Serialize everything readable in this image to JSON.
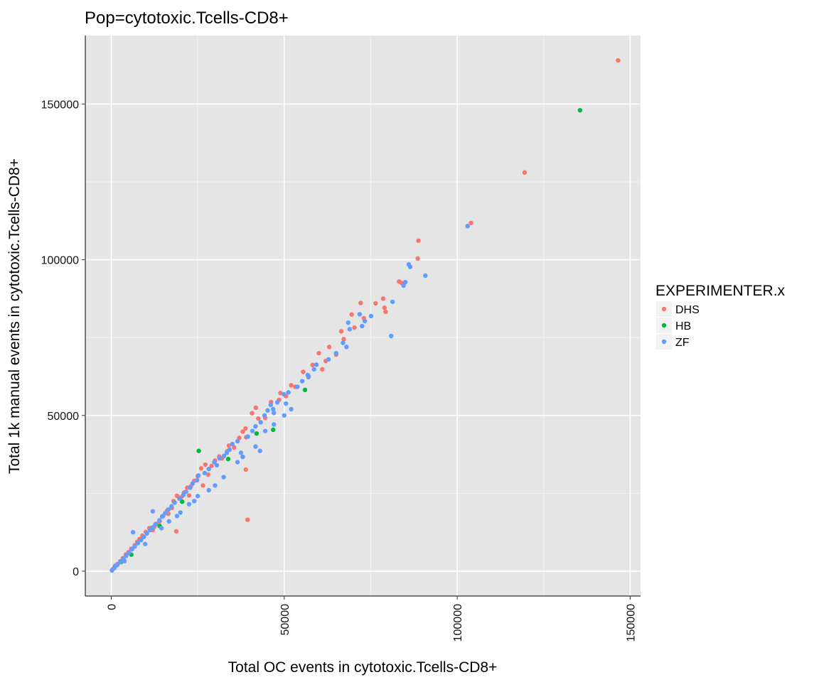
{
  "chart_data": {
    "type": "scatter",
    "title": "Pop=cytotoxic.Tcells-CD8+",
    "xlabel": "Total OC events in cytotoxic.Tcells-CD8+",
    "ylabel": "Total 1k manual events in cytotoxic.Tcells-CD8+",
    "xlim": [
      -7500,
      153000
    ],
    "ylim": [
      -8000,
      172000
    ],
    "x_ticks": [
      0,
      50000,
      100000,
      150000
    ],
    "x_tick_labels": [
      "0",
      "50000",
      "100000",
      "150000"
    ],
    "y_ticks": [
      0,
      50000,
      100000,
      150000
    ],
    "y_tick_labels": [
      "0",
      "50000",
      "100000",
      "150000"
    ],
    "grid": true,
    "legend": {
      "title": "EXPERIMENTER.x",
      "placement": "right",
      "entries": [
        {
          "label": "DHS",
          "color": "#F8766D"
        },
        {
          "label": "HB",
          "color": "#00BA38"
        },
        {
          "label": "ZF",
          "color": "#619CFF"
        }
      ]
    },
    "series": [
      {
        "name": "DHS",
        "color": "#F8766D",
        "points": [
          [
            146500,
            164000
          ],
          [
            119500,
            128000
          ],
          [
            104000,
            111800
          ],
          [
            88800,
            106100
          ],
          [
            88600,
            100400
          ],
          [
            83200,
            93000
          ],
          [
            78600,
            87500
          ],
          [
            76400,
            86000
          ],
          [
            72100,
            86100
          ],
          [
            79300,
            83300
          ],
          [
            69500,
            82400
          ],
          [
            70300,
            78200
          ],
          [
            66500,
            77000
          ],
          [
            67200,
            74500
          ],
          [
            60000,
            70000
          ],
          [
            63000,
            72000
          ],
          [
            62000,
            67500
          ],
          [
            58200,
            66200
          ],
          [
            55500,
            64000
          ],
          [
            53200,
            59200
          ],
          [
            52000,
            59700
          ],
          [
            48900,
            57200
          ],
          [
            48500,
            55000
          ],
          [
            46200,
            54300
          ],
          [
            41800,
            52500
          ],
          [
            40700,
            50700
          ],
          [
            42500,
            49000
          ],
          [
            38800,
            45800
          ],
          [
            38000,
            44800
          ],
          [
            37000,
            42800
          ],
          [
            39000,
            43000
          ],
          [
            38900,
            32600
          ],
          [
            39400,
            16500
          ],
          [
            34000,
            40300
          ],
          [
            33500,
            38500
          ],
          [
            31200,
            36800
          ],
          [
            27200,
            34200
          ],
          [
            26000,
            33000
          ],
          [
            30000,
            35500
          ],
          [
            28000,
            31000
          ],
          [
            25000,
            30500
          ],
          [
            24000,
            29000
          ],
          [
            26500,
            27500
          ],
          [
            22000,
            26800
          ],
          [
            21000,
            25200
          ],
          [
            19000,
            24200
          ],
          [
            18000,
            22500
          ],
          [
            17500,
            20300
          ],
          [
            16200,
            19500
          ],
          [
            15000,
            17700
          ],
          [
            14000,
            16000
          ],
          [
            13000,
            15200
          ],
          [
            12500,
            14300
          ],
          [
            11000,
            13800
          ],
          [
            10000,
            12600
          ],
          [
            9000,
            11400
          ],
          [
            18800,
            12800
          ],
          [
            8200,
            10300
          ],
          [
            7500,
            9400
          ],
          [
            6800,
            8300
          ],
          [
            5800,
            7200
          ],
          [
            5000,
            6100
          ],
          [
            4200,
            5300
          ],
          [
            3400,
            4200
          ],
          [
            2600,
            3200
          ],
          [
            1800,
            2300
          ],
          [
            1000,
            1400
          ],
          [
            400,
            600
          ],
          [
            20200,
            23700
          ],
          [
            23000,
            27200
          ],
          [
            29000,
            33800
          ],
          [
            32000,
            36200
          ],
          [
            35500,
            39700
          ],
          [
            44500,
            49200
          ],
          [
            50500,
            56200
          ],
          [
            57000,
            62600
          ],
          [
            61000,
            64800
          ],
          [
            65000,
            69500
          ],
          [
            73000,
            81200
          ],
          [
            79000,
            84600
          ],
          [
            84000,
            92500
          ],
          [
            12000,
            13200
          ],
          [
            16500,
            18400
          ],
          [
            22500,
            24300
          ]
        ]
      },
      {
        "name": "HB",
        "color": "#00BA38",
        "points": [
          [
            135500,
            148000
          ],
          [
            56000,
            58200
          ],
          [
            46800,
            45400
          ],
          [
            42000,
            44200
          ],
          [
            25300,
            38600
          ],
          [
            33800,
            36000
          ],
          [
            20500,
            22300
          ],
          [
            14000,
            14500
          ],
          [
            5800,
            5300
          ],
          [
            2800,
            2900
          ]
        ]
      },
      {
        "name": "ZF",
        "color": "#619CFF",
        "points": [
          [
            103000,
            110800
          ],
          [
            90800,
            94900
          ],
          [
            86000,
            98500
          ],
          [
            86400,
            97700
          ],
          [
            85000,
            92800
          ],
          [
            84500,
            91700
          ],
          [
            81300,
            86500
          ],
          [
            80900,
            75500
          ],
          [
            75100,
            81900
          ],
          [
            73300,
            80300
          ],
          [
            72500,
            78700
          ],
          [
            71800,
            82500
          ],
          [
            68500,
            79800
          ],
          [
            68900,
            77700
          ],
          [
            67000,
            73300
          ],
          [
            68000,
            72000
          ],
          [
            65000,
            70000
          ],
          [
            62800,
            68000
          ],
          [
            59300,
            66300
          ],
          [
            58600,
            64800
          ],
          [
            56800,
            63000
          ],
          [
            55200,
            61000
          ],
          [
            57000,
            62300
          ],
          [
            53800,
            59200
          ],
          [
            51200,
            57400
          ],
          [
            49900,
            56800
          ],
          [
            50500,
            53800
          ],
          [
            46100,
            53400
          ],
          [
            45200,
            51600
          ],
          [
            44300,
            50000
          ],
          [
            46800,
            52000
          ],
          [
            48000,
            54200
          ],
          [
            47000,
            50800
          ],
          [
            43200,
            47800
          ],
          [
            41700,
            46500
          ],
          [
            40800,
            45000
          ],
          [
            39500,
            43200
          ],
          [
            36500,
            41700
          ],
          [
            35000,
            40800
          ],
          [
            34200,
            39000
          ],
          [
            33400,
            38000
          ],
          [
            32600,
            37000
          ],
          [
            31300,
            36200
          ],
          [
            29800,
            35000
          ],
          [
            30500,
            34000
          ],
          [
            28200,
            32800
          ],
          [
            27000,
            31500
          ],
          [
            25200,
            30700
          ],
          [
            24800,
            29200
          ],
          [
            23500,
            28100
          ],
          [
            22800,
            26800
          ],
          [
            21600,
            25500
          ],
          [
            20800,
            24400
          ],
          [
            19700,
            23300
          ],
          [
            18300,
            22000
          ],
          [
            17400,
            20800
          ],
          [
            16500,
            19800
          ],
          [
            15600,
            18600
          ],
          [
            14700,
            17500
          ],
          [
            13900,
            16300
          ],
          [
            12800,
            15100
          ],
          [
            11900,
            14000
          ],
          [
            11200,
            13200
          ],
          [
            12000,
            19200
          ],
          [
            10300,
            12100
          ],
          [
            9400,
            11000
          ],
          [
            8600,
            10000
          ],
          [
            7700,
            9000
          ],
          [
            6800,
            7900
          ],
          [
            6000,
            7000
          ],
          [
            5100,
            5900
          ],
          [
            4300,
            4900
          ],
          [
            3500,
            3900
          ],
          [
            2600,
            2900
          ],
          [
            1700,
            1900
          ],
          [
            900,
            1000
          ],
          [
            200,
            200
          ],
          [
            6300,
            12500
          ],
          [
            41700,
            40000
          ],
          [
            43000,
            38600
          ],
          [
            47000,
            47100
          ],
          [
            28200,
            26000
          ],
          [
            30000,
            27500
          ],
          [
            32500,
            30200
          ],
          [
            14500,
            13800
          ],
          [
            20000,
            18800
          ],
          [
            22500,
            21500
          ],
          [
            25000,
            24100
          ],
          [
            36500,
            35000
          ],
          [
            38000,
            36700
          ],
          [
            50000,
            50000
          ],
          [
            52000,
            52000
          ],
          [
            44500,
            45000
          ],
          [
            37500,
            38000
          ],
          [
            16700,
            16000
          ],
          [
            19000,
            17700
          ],
          [
            24000,
            22500
          ],
          [
            9800,
            8700
          ],
          [
            3800,
            3200
          ],
          [
            1200,
            1800
          ]
        ]
      }
    ]
  }
}
